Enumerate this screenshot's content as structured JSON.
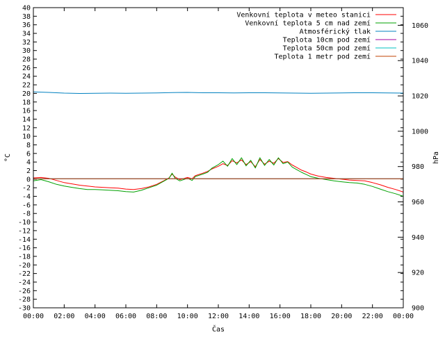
{
  "chart_data": {
    "type": "line",
    "title": "",
    "xlabel": "Čas",
    "ylabel": "°C",
    "y2label": "hPa",
    "xlim": [
      0,
      24
    ],
    "ylim": [
      -30,
      40
    ],
    "y2lim": [
      900,
      1070
    ],
    "x_tick_labels": [
      "00:00",
      "02:00",
      "04:00",
      "06:00",
      "08:00",
      "10:00",
      "12:00",
      "14:00",
      "16:00",
      "18:00",
      "20:00",
      "22:00",
      "00:00"
    ],
    "y_ticks": [
      40,
      38,
      36,
      34,
      32,
      30,
      28,
      26,
      24,
      22,
      20,
      18,
      16,
      14,
      12,
      10,
      8,
      6,
      4,
      2,
      0,
      -2,
      -4,
      -6,
      -8,
      -10,
      -12,
      -14,
      -16,
      -18,
      -20,
      -22,
      -24,
      -26,
      -28,
      -30
    ],
    "y2_ticks": [
      1060,
      1040,
      1020,
      1000,
      980,
      960,
      940,
      920,
      900
    ],
    "grid": false,
    "legend_position": "top-right",
    "series": [
      {
        "name": "Venkovní teplota v meteo stanici",
        "axis": "y1",
        "color": "#ff0000",
        "x": [
          0,
          0.5,
          1,
          1.5,
          2,
          2.5,
          3,
          3.5,
          4,
          4.5,
          5,
          5.5,
          6,
          6.5,
          7,
          7.5,
          8,
          8.5,
          8.8,
          9,
          9.2,
          9.5,
          10,
          10.3,
          10.5,
          11,
          11.3,
          11.6,
          12,
          12.3,
          12.6,
          12.9,
          13.2,
          13.5,
          13.8,
          14.1,
          14.4,
          14.7,
          15,
          15.3,
          15.6,
          15.9,
          16.2,
          16.5,
          16.8,
          17.1,
          17.4,
          17.7,
          18,
          18.5,
          19,
          19.5,
          20,
          20.5,
          21,
          21.5,
          22,
          22.5,
          23,
          23.5,
          24
        ],
        "y": [
          0.3,
          0.4,
          0.2,
          -0.3,
          -0.8,
          -1.1,
          -1.4,
          -1.6,
          -1.8,
          -1.9,
          -2.0,
          -2.1,
          -2.3,
          -2.4,
          -2.2,
          -1.8,
          -1.2,
          -0.3,
          0.3,
          1.2,
          0.5,
          -0.1,
          0.4,
          0.1,
          0.8,
          1.4,
          1.8,
          2.4,
          3.0,
          3.6,
          3.2,
          4.3,
          3.8,
          4.5,
          3.4,
          4.1,
          2.9,
          4.6,
          3.5,
          4.2,
          3.7,
          4.8,
          3.9,
          4.1,
          3.3,
          2.7,
          2.1,
          1.7,
          1.2,
          0.7,
          0.4,
          0.2,
          0.0,
          -0.2,
          -0.3,
          -0.4,
          -0.8,
          -1.3,
          -1.9,
          -2.4,
          -3.0
        ]
      },
      {
        "name": "Venkovní teplota 5 cm nad zemí",
        "axis": "y1",
        "color": "#00a000",
        "x": [
          0,
          0.5,
          1,
          1.5,
          2,
          2.5,
          3,
          3.5,
          4,
          4.5,
          5,
          5.5,
          6,
          6.5,
          7,
          7.5,
          8,
          8.5,
          8.8,
          9,
          9.2,
          9.5,
          10,
          10.3,
          10.5,
          11,
          11.3,
          11.6,
          12,
          12.3,
          12.6,
          12.9,
          13.2,
          13.5,
          13.8,
          14.1,
          14.4,
          14.7,
          15,
          15.3,
          15.6,
          15.9,
          16.2,
          16.5,
          16.8,
          17.1,
          17.4,
          17.7,
          18,
          18.5,
          19,
          19.5,
          20,
          20.5,
          21,
          21.5,
          22,
          22.5,
          23,
          23.5,
          24
        ],
        "y": [
          -0.4,
          -0.1,
          -0.6,
          -1.2,
          -1.6,
          -1.9,
          -2.2,
          -2.4,
          -2.4,
          -2.5,
          -2.6,
          -2.7,
          -2.9,
          -3.0,
          -2.6,
          -2.0,
          -1.4,
          -0.4,
          0.2,
          1.4,
          0.2,
          -0.4,
          0.2,
          -0.3,
          0.6,
          1.2,
          1.6,
          2.6,
          3.4,
          4.2,
          3.0,
          4.8,
          3.4,
          5.0,
          3.1,
          4.4,
          2.6,
          5.0,
          3.2,
          4.6,
          3.3,
          5.0,
          3.6,
          4.0,
          2.8,
          2.2,
          1.6,
          1.1,
          0.6,
          0.2,
          -0.1,
          -0.4,
          -0.6,
          -0.8,
          -0.9,
          -1.2,
          -1.7,
          -2.3,
          -2.9,
          -3.4,
          -4.0
        ]
      },
      {
        "name": "Atmosférický tlak",
        "axis": "y2",
        "color": "#0080c0",
        "x": [
          0,
          1,
          2,
          3,
          4,
          5,
          6,
          7,
          8,
          9,
          10,
          11,
          12,
          13,
          14,
          15,
          16,
          17,
          18,
          19,
          20,
          21,
          22,
          23,
          24
        ],
        "y": [
          1022.3,
          1022.0,
          1021.6,
          1021.4,
          1021.5,
          1021.6,
          1021.5,
          1021.6,
          1021.7,
          1021.9,
          1022.0,
          1021.8,
          1021.8,
          1021.7,
          1021.8,
          1021.8,
          1021.7,
          1021.6,
          1021.5,
          1021.6,
          1021.7,
          1021.8,
          1021.8,
          1021.7,
          1021.6
        ]
      },
      {
        "name": "Teplota 10cm pod zemí",
        "axis": "y1",
        "color": "#a000a0",
        "x": [
          0,
          24
        ],
        "y": [
          0.1,
          0.1
        ]
      },
      {
        "name": "Teplota 50cm pod zemí",
        "axis": "y1",
        "color": "#00c0c0",
        "x": [
          0,
          24
        ],
        "y": [
          0.1,
          0.1
        ]
      },
      {
        "name": "Teplota 1 metr pod zemí",
        "axis": "y1",
        "color": "#c04000",
        "x": [
          0,
          24
        ],
        "y": [
          0.1,
          0.1
        ]
      }
    ]
  }
}
